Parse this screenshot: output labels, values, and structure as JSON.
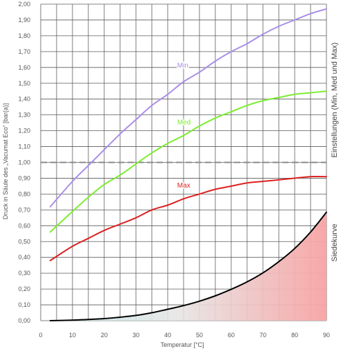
{
  "chart_data": {
    "type": "line",
    "xlabel": "Temperatur [°C]",
    "ylabel": "Druck in Säule des „Vacumat Eco“ [bar(a)]",
    "right_label_top": "Einstellungen (Min, Med und Max)",
    "right_label_bottom": "Siedekurve",
    "xlim": [
      0,
      90
    ],
    "ylim": [
      0,
      2.0
    ],
    "x_ticks": [
      "0",
      "10",
      "20",
      "30",
      "40",
      "50",
      "60",
      "70",
      "80",
      "90"
    ],
    "y_ticks": [
      "0,00",
      "0,10",
      "0,20",
      "0,30",
      "0,40",
      "0,50",
      "0,60",
      "0,70",
      "0,80",
      "0,90",
      "1,00",
      "1,10",
      "1,20",
      "1,30",
      "1,40",
      "1,50",
      "1,60",
      "1,70",
      "1,80",
      "1,90",
      "2,00"
    ],
    "grid": true,
    "reference_line": {
      "y": 1.0,
      "style": "dashed"
    },
    "series": [
      {
        "name": "Min",
        "color": "#a98ee8",
        "points": [
          [
            3,
            0.72
          ],
          [
            10,
            0.88
          ],
          [
            15,
            0.98
          ],
          [
            20,
            1.08
          ],
          [
            25,
            1.18
          ],
          [
            30,
            1.27
          ],
          [
            35,
            1.36
          ],
          [
            40,
            1.43
          ],
          [
            45,
            1.51
          ],
          [
            50,
            1.57
          ],
          [
            55,
            1.64
          ],
          [
            60,
            1.7
          ],
          [
            65,
            1.75
          ],
          [
            70,
            1.81
          ],
          [
            75,
            1.86
          ],
          [
            80,
            1.9
          ],
          [
            85,
            1.94
          ],
          [
            90,
            1.97
          ]
        ]
      },
      {
        "name": "Med",
        "color": "#7bed2e",
        "points": [
          [
            3,
            0.56
          ],
          [
            10,
            0.69
          ],
          [
            15,
            0.78
          ],
          [
            20,
            0.86
          ],
          [
            25,
            0.92
          ],
          [
            30,
            0.99
          ],
          [
            35,
            1.06
          ],
          [
            40,
            1.12
          ],
          [
            45,
            1.17
          ],
          [
            50,
            1.23
          ],
          [
            55,
            1.28
          ],
          [
            60,
            1.32
          ],
          [
            65,
            1.36
          ],
          [
            70,
            1.39
          ],
          [
            75,
            1.41
          ],
          [
            80,
            1.43
          ],
          [
            85,
            1.44
          ],
          [
            90,
            1.45
          ]
        ]
      },
      {
        "name": "Max",
        "color": "#dd1f1f",
        "points": [
          [
            3,
            0.38
          ],
          [
            10,
            0.47
          ],
          [
            15,
            0.52
          ],
          [
            20,
            0.57
          ],
          [
            25,
            0.61
          ],
          [
            30,
            0.65
          ],
          [
            35,
            0.7
          ],
          [
            40,
            0.73
          ],
          [
            45,
            0.77
          ],
          [
            50,
            0.8
          ],
          [
            55,
            0.83
          ],
          [
            60,
            0.85
          ],
          [
            65,
            0.87
          ],
          [
            70,
            0.88
          ],
          [
            75,
            0.89
          ],
          [
            80,
            0.9
          ],
          [
            85,
            0.91
          ],
          [
            90,
            0.91
          ]
        ]
      },
      {
        "name": "Siedekurve",
        "color": "#000000",
        "points": [
          [
            3,
            0.0
          ],
          [
            10,
            0.003
          ],
          [
            15,
            0.008
          ],
          [
            20,
            0.013
          ],
          [
            25,
            0.022
          ],
          [
            30,
            0.033
          ],
          [
            35,
            0.05
          ],
          [
            40,
            0.072
          ],
          [
            45,
            0.095
          ],
          [
            50,
            0.123
          ],
          [
            55,
            0.157
          ],
          [
            60,
            0.198
          ],
          [
            65,
            0.245
          ],
          [
            70,
            0.302
          ],
          [
            75,
            0.373
          ],
          [
            80,
            0.456
          ],
          [
            85,
            0.56
          ],
          [
            90,
            0.685
          ]
        ]
      }
    ],
    "series_labels": [
      {
        "text": "Min",
        "x": 43,
        "y": 1.6
      },
      {
        "text": "Med",
        "x": 43,
        "y": 1.24
      },
      {
        "text": "Max",
        "x": 43,
        "y": 0.84
      }
    ]
  }
}
